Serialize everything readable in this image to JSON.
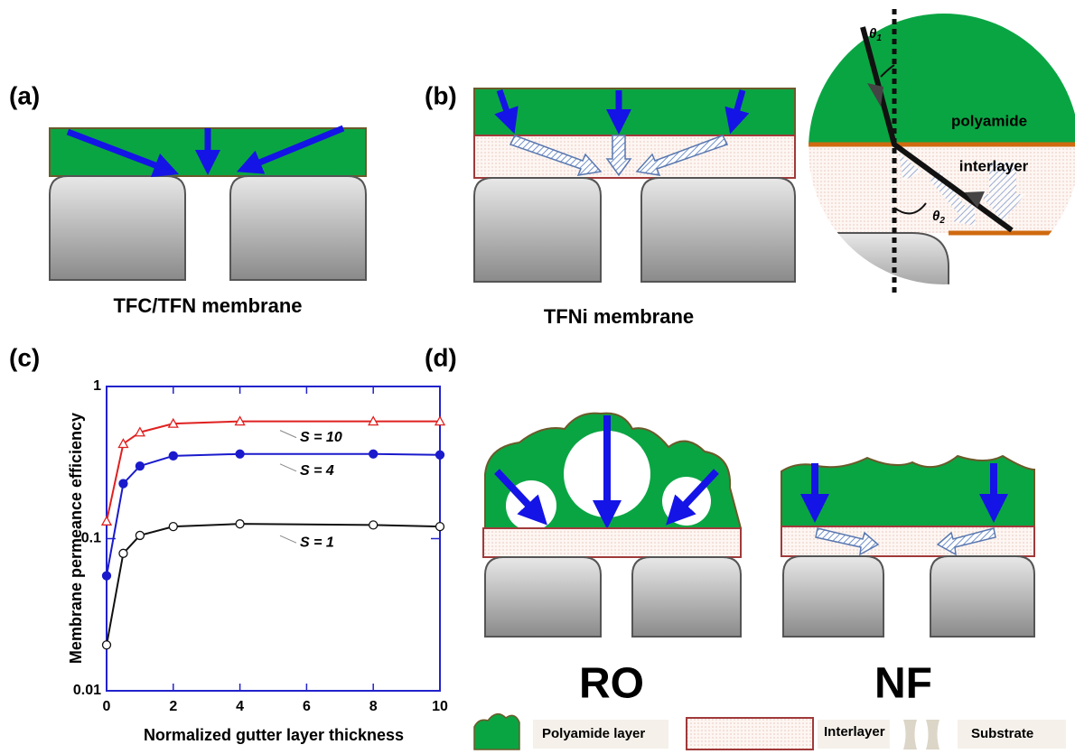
{
  "panel_a": {
    "label": "(a)",
    "caption": "TFC/TFN membrane"
  },
  "panel_b": {
    "label": "(b)",
    "caption": "TFNi membrane"
  },
  "inset": {
    "top_layer": "polyamide",
    "middle_layer": "interlayer",
    "theta_1": {
      "symbol": "θ",
      "subscript": "1"
    },
    "theta_2": {
      "symbol": "θ",
      "subscript": "2"
    }
  },
  "panel_c": {
    "label": "(c)"
  },
  "panel_d": {
    "label": "(d)",
    "left_caption": "RO",
    "right_caption": "NF"
  },
  "legend": {
    "polyamide": "Polyamide layer",
    "interlayer": "Interlayer",
    "substrate": "Substrate"
  },
  "chart_data": {
    "type": "line",
    "x_label": "Normalized gutter layer thickness",
    "y_label": "Membrane permeance efficiency",
    "x": [
      0,
      0.5,
      1,
      2,
      4,
      8,
      10
    ],
    "xlim": [
      0,
      10
    ],
    "xticks": [
      0,
      2,
      4,
      6,
      8,
      10
    ],
    "ylim": [
      0.01,
      1
    ],
    "yticks": [
      0.01,
      0.1,
      1
    ],
    "ylog": true,
    "axis_color": "#2222cc",
    "series": [
      {
        "name": "S = 10",
        "color": "#e02020",
        "marker": "triangle-open",
        "values": [
          0.13,
          0.42,
          0.5,
          0.57,
          0.59,
          0.59,
          0.59
        ]
      },
      {
        "name": "S = 4",
        "color": "#1a1acc",
        "marker": "circle-filled",
        "values": [
          0.057,
          0.23,
          0.3,
          0.35,
          0.36,
          0.36,
          0.355
        ]
      },
      {
        "name": "S = 1",
        "color": "#111111",
        "marker": "circle-open",
        "values": [
          0.02,
          0.08,
          0.105,
          0.12,
          0.125,
          0.123,
          0.12
        ]
      }
    ]
  }
}
